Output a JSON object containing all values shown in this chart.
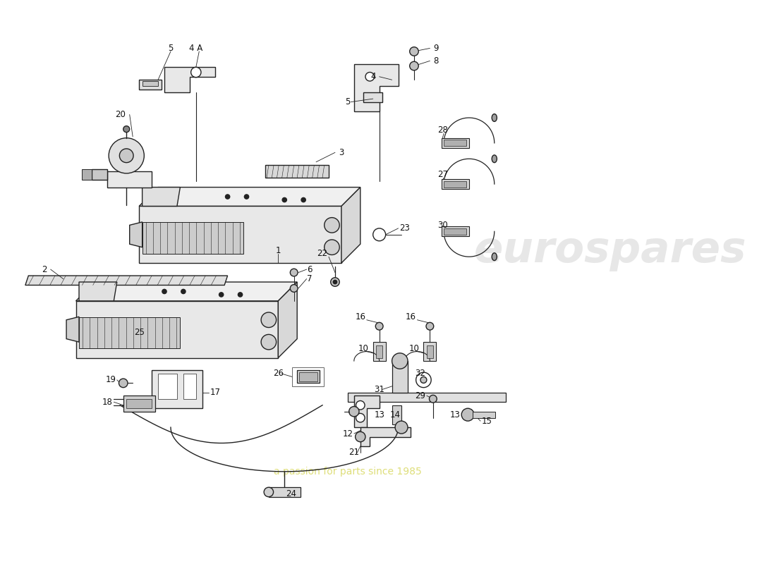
{
  "bg_color": "#ffffff",
  "line_color": "#222222",
  "watermark1": "eurospares",
  "watermark2": "a passion for parts since 1985",
  "label_fs": 9,
  "lw": 1.0
}
